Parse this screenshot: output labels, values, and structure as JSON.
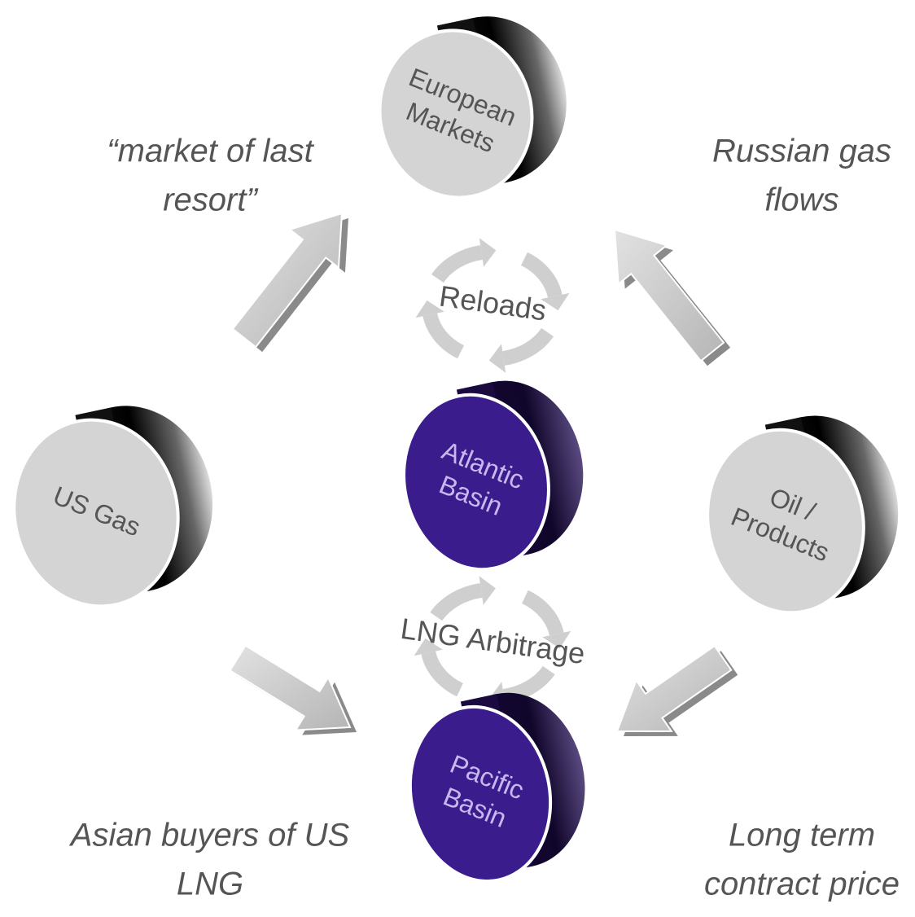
{
  "nodes": [
    {
      "label_lines": [
        "European",
        "Markets"
      ]
    },
    {
      "label_lines": [
        "US Gas"
      ]
    },
    {
      "label_lines": [
        "Atlantic",
        "Basin"
      ]
    },
    {
      "label_lines": [
        "Oil /",
        "Products"
      ]
    },
    {
      "label_lines": [
        "Pacific",
        "Basin"
      ]
    }
  ],
  "cycles": [
    {
      "label": "Reloads"
    },
    {
      "label": "LNG Arbitrage"
    }
  ],
  "annotations": [
    {
      "lines": [
        "“market of last",
        "resort”"
      ]
    },
    {
      "lines": [
        "Russian gas",
        "flows"
      ]
    },
    {
      "lines": [
        "Asian buyers of US",
        "LNG"
      ]
    },
    {
      "lines": [
        "Long term",
        "contract price"
      ]
    }
  ]
}
